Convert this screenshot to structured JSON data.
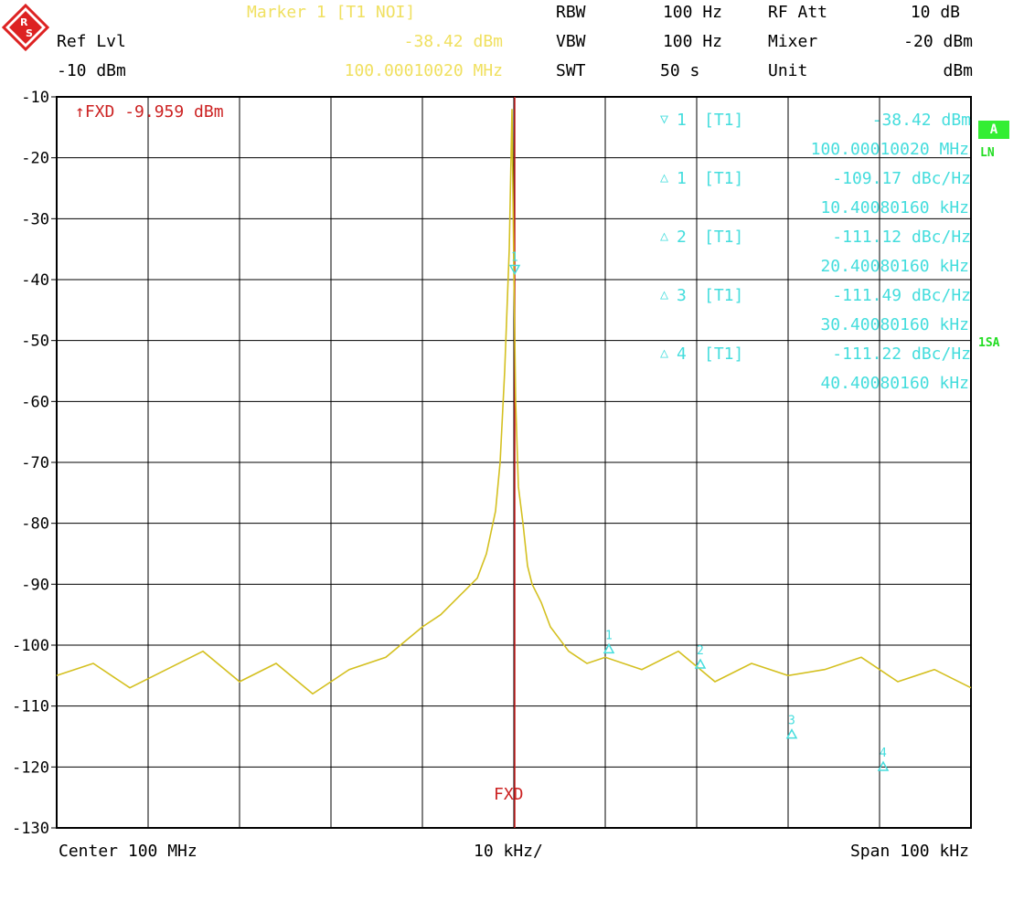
{
  "header": {
    "marker_title": "Marker 1 [T1 NOI]",
    "marker_level": "-38.42 dBm",
    "marker_freq": "100.00010020 MHz",
    "ref_lvl_label": "Ref Lvl",
    "ref_lvl_value": "-10 dBm",
    "rbw_label": "RBW",
    "rbw_value": "100 Hz",
    "vbw_label": "VBW",
    "vbw_value": "100 Hz",
    "swt_label": "SWT",
    "swt_value": "50 s",
    "rfatt_label": "RF Att",
    "rfatt_value": "10 dB",
    "mixer_label": "Mixer",
    "mixer_value": "-20 dBm",
    "unit_label": "Unit",
    "unit_value": "dBm"
  },
  "side": {
    "badge_a": "A",
    "ln": "LN",
    "sa": "1SA"
  },
  "footer": {
    "center": "Center 100 MHz",
    "div": "10 kHz/",
    "span": "Span 100 kHz"
  },
  "fxd": {
    "label": "FXD -9.959 dBm",
    "line_label": "FXD"
  },
  "marker_table": [
    {
      "sym": "▽",
      "id": "1",
      "trace": "[T1]",
      "value": "-38.42 dBm",
      "x": "100.00010020 MHz"
    },
    {
      "sym": "△",
      "id": "1",
      "trace": "[T1]",
      "value": "-109.17 dBc/Hz",
      "x": "10.40080160 kHz"
    },
    {
      "sym": "△",
      "id": "2",
      "trace": "[T1]",
      "value": "-111.12 dBc/Hz",
      "x": "20.40080160 kHz"
    },
    {
      "sym": "△",
      "id": "3",
      "trace": "[T1]",
      "value": "-111.49 dBc/Hz",
      "x": "30.40080160 kHz"
    },
    {
      "sym": "△",
      "id": "4",
      "trace": "[T1]",
      "value": "-111.22 dBc/Hz",
      "x": "40.40080160 kHz"
    }
  ],
  "colors": {
    "trace": "#d4c020",
    "marker": "#44dddd",
    "fxd": "#cc2222",
    "grid": "#000000"
  },
  "chart_data": {
    "type": "line",
    "title": "",
    "xlabel": "",
    "ylabel": "",
    "ylim": [
      -130,
      -10
    ],
    "xlim": [
      -50,
      50
    ],
    "x_unit": "kHz offset from 100 MHz",
    "y_ticks": [
      "-10",
      "-20",
      "-30",
      "-40",
      "-50",
      "-60",
      "-70",
      "-80",
      "-90",
      "-100",
      "-110",
      "-120",
      "-130"
    ],
    "fxd_level": -9.959,
    "fxd_x": 0.1,
    "series": [
      {
        "x": [
          -50,
          -46,
          -42,
          -38,
          -34,
          -30,
          -26,
          -22,
          -18,
          -14,
          -10,
          -8,
          -6,
          -4,
          -3,
          -2,
          -1.5,
          -1,
          -0.5,
          -0.2,
          0,
          0.2,
          0.5,
          1,
          1.5,
          2,
          3,
          4,
          6,
          8,
          10,
          14,
          18,
          22,
          26,
          30,
          34,
          38,
          42,
          46,
          50
        ],
        "y": [
          -105,
          -103,
          -107,
          -104,
          -101,
          -106,
          -103,
          -108,
          -104,
          -102,
          -97,
          -95,
          -92,
          -89,
          -85,
          -78,
          -70,
          -55,
          -35,
          -12,
          -38,
          -60,
          -74,
          -80,
          -87,
          -90,
          -93,
          -97,
          -101,
          -103,
          -102,
          -104,
          -101,
          -106,
          -103,
          -105,
          -104,
          -102,
          -106,
          -104,
          -107
        ]
      }
    ],
    "markers": [
      {
        "label": "1",
        "x": 0.1,
        "y": -38.42
      },
      {
        "label": "1",
        "x": 10.4,
        "y": -100.5
      },
      {
        "label": "2",
        "x": 20.4,
        "y": -103
      },
      {
        "label": "3",
        "x": 30.4,
        "y": -114.5
      },
      {
        "label": "4",
        "x": 40.4,
        "y": -119.8
      }
    ]
  }
}
